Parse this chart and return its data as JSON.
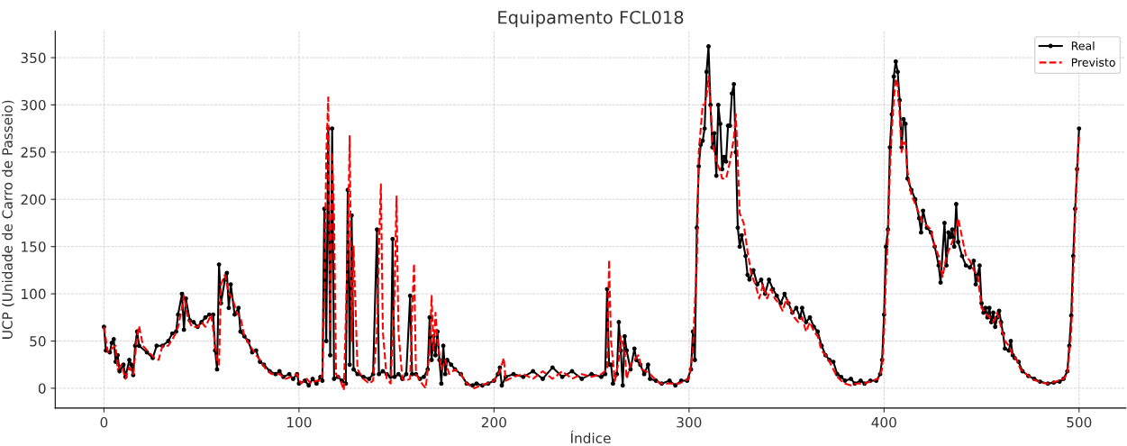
{
  "chart_data": {
    "type": "line",
    "title": "Equipamento FCL018",
    "xlabel": "Índice",
    "ylabel": "UCP (Unidade de Carro de Passeio)",
    "xlim": [
      -25,
      524
    ],
    "ylim": [
      -21,
      378
    ],
    "xticks": [
      0,
      100,
      200,
      300,
      400,
      500
    ],
    "yticks": [
      0,
      50,
      100,
      150,
      200,
      250,
      300,
      350
    ],
    "grid": true,
    "legend": "top right",
    "series": [
      {
        "name": "Real",
        "color": "#000000",
        "marker": "circle",
        "line_style": "solid",
        "x": [
          0,
          1,
          3,
          4,
          5,
          6,
          7,
          8,
          10,
          11,
          13,
          14,
          15,
          16,
          17,
          18,
          22,
          25,
          27,
          30,
          33,
          35,
          37,
          38,
          40,
          41,
          42,
          44,
          46,
          48,
          50,
          52,
          54,
          56,
          57,
          58,
          59,
          60,
          62,
          63,
          64,
          65,
          67,
          69,
          70,
          72,
          74,
          76,
          78,
          80,
          82,
          85,
          88,
          90,
          92,
          95,
          97,
          99,
          100,
          103,
          105,
          107,
          109,
          111,
          112,
          113,
          114,
          115,
          116,
          117,
          118,
          120,
          122,
          124,
          125,
          126,
          127,
          128,
          130,
          133,
          136,
          138,
          140,
          141,
          143,
          145,
          147,
          148,
          149,
          151,
          153,
          155,
          157,
          158,
          160,
          162,
          164,
          166,
          167,
          168,
          169,
          170,
          171,
          172,
          173,
          174,
          175,
          176,
          178,
          180,
          183,
          186,
          189,
          191,
          194,
          197,
          200,
          202,
          203,
          204,
          206,
          210,
          215,
          220,
          225,
          230,
          235,
          240,
          245,
          250,
          255,
          257,
          258,
          259,
          260,
          261,
          263,
          264,
          265,
          266,
          267,
          268,
          270,
          272,
          273,
          275,
          277,
          279,
          280,
          283,
          286,
          290,
          293,
          296,
          299,
          301,
          302,
          303,
          304,
          305,
          306,
          307,
          308,
          309,
          310,
          311,
          312,
          313,
          314,
          315,
          316,
          317,
          318,
          319,
          320,
          321,
          322,
          323,
          324,
          325,
          326,
          327,
          329,
          330,
          331,
          333,
          335,
          337,
          339,
          341,
          343,
          345,
          347,
          349,
          351,
          353,
          355,
          357,
          358,
          360,
          362,
          364,
          366,
          368,
          370,
          372,
          374,
          376,
          378,
          380,
          383,
          385,
          388,
          390,
          393,
          396,
          398,
          399,
          400,
          401,
          402,
          403,
          404,
          405,
          406,
          407,
          408,
          409,
          410,
          411,
          412,
          414,
          416,
          418,
          419,
          420,
          422,
          424,
          426,
          428,
          429,
          431,
          432,
          433,
          434,
          435,
          436,
          437,
          438,
          440,
          442,
          444,
          446,
          447,
          448,
          449,
          450,
          451,
          452,
          453,
          454,
          455,
          456,
          457,
          458,
          459,
          460,
          461,
          462,
          464,
          465,
          466,
          467,
          469,
          471,
          474,
          477,
          480,
          484,
          487,
          490,
          492,
          494,
          495,
          496,
          497,
          498,
          499,
          500
        ],
        "values": [
          65,
          40,
          38,
          48,
          52,
          28,
          35,
          18,
          25,
          12,
          30,
          25,
          14,
          45,
          60,
          45,
          38,
          32,
          45,
          45,
          50,
          58,
          60,
          78,
          100,
          62,
          95,
          72,
          70,
          65,
          70,
          75,
          78,
          78,
          40,
          20,
          131,
          90,
          115,
          122,
          85,
          110,
          78,
          85,
          60,
          55,
          50,
          38,
          40,
          28,
          25,
          18,
          15,
          18,
          12,
          15,
          10,
          15,
          5,
          8,
          3,
          10,
          5,
          12,
          8,
          190,
          50,
          275,
          35,
          275,
          10,
          12,
          8,
          5,
          210,
          25,
          183,
          20,
          15,
          12,
          10,
          15,
          168,
          15,
          18,
          15,
          12,
          158,
          12,
          15,
          10,
          15,
          98,
          15,
          15,
          10,
          12,
          20,
          75,
          30,
          55,
          35,
          60,
          30,
          5,
          45,
          15,
          30,
          25,
          20,
          15,
          5,
          3,
          5,
          3,
          5,
          8,
          15,
          22,
          3,
          12,
          15,
          12,
          18,
          10,
          22,
          12,
          18,
          10,
          15,
          12,
          15,
          105,
          25,
          25,
          5,
          15,
          70,
          40,
          3,
          55,
          40,
          20,
          42,
          30,
          25,
          15,
          25,
          10,
          8,
          5,
          8,
          3,
          8,
          8,
          20,
          60,
          30,
          170,
          235,
          258,
          262,
          275,
          335,
          362,
          300,
          255,
          270,
          225,
          300,
          280,
          232,
          245,
          240,
          278,
          278,
          312,
          322,
          250,
          170,
          150,
          162,
          140,
          120,
          115,
          125,
          110,
          115,
          100,
          115,
          105,
          98,
          90,
          100,
          90,
          80,
          85,
          75,
          85,
          70,
          75,
          65,
          60,
          45,
          35,
          30,
          28,
          15,
          12,
          8,
          10,
          5,
          8,
          5,
          8,
          8,
          15,
          30,
          78,
          150,
          168,
          255,
          290,
          330,
          346,
          335,
          305,
          255,
          285,
          280,
          222,
          210,
          200,
          180,
          165,
          188,
          170,
          165,
          150,
          130,
          112,
          175,
          130,
          165,
          160,
          168,
          150,
          195,
          155,
          140,
          130,
          128,
          135,
          110,
          120,
          130,
          90,
          80,
          85,
          75,
          85,
          70,
          80,
          65,
          75,
          82,
          70,
          58,
          42,
          40,
          50,
          35,
          32,
          28,
          18,
          13,
          10,
          7,
          5,
          6,
          7,
          10,
          18,
          45,
          77,
          140,
          190,
          232,
          275
        ]
      },
      {
        "name": "Previsto",
        "color": "#ff0000",
        "marker": "none",
        "line_style": "dashed",
        "x": [
          0,
          2,
          4,
          6,
          7,
          9,
          11,
          13,
          15,
          17,
          18,
          20,
          23,
          26,
          28,
          30,
          33,
          36,
          38,
          40,
          41,
          43,
          45,
          48,
          50,
          52,
          55,
          58,
          59,
          60,
          62,
          64,
          66,
          68,
          70,
          72,
          75,
          78,
          80,
          83,
          86,
          90,
          93,
          96,
          99,
          101,
          104,
          106,
          109,
          111,
          112,
          113,
          114,
          115,
          116,
          117,
          118,
          119,
          121,
          123,
          125,
          126,
          127,
          128,
          130,
          133,
          136,
          138,
          140,
          141,
          142,
          143,
          145,
          147,
          149,
          150,
          151,
          153,
          155,
          157,
          158,
          159,
          160,
          163,
          165,
          167,
          168,
          169,
          170,
          171,
          173,
          175,
          177,
          180,
          183,
          186,
          190,
          193,
          196,
          200,
          203,
          205,
          206,
          210,
          215,
          220,
          225,
          230,
          235,
          240,
          245,
          250,
          255,
          258,
          259,
          260,
          262,
          264,
          265,
          267,
          268,
          270,
          272,
          274,
          276,
          280,
          285,
          290,
          295,
          300,
          302,
          303,
          304,
          305,
          307,
          308,
          309,
          310,
          311,
          312,
          314,
          316,
          317,
          319,
          321,
          323,
          324,
          325,
          326,
          328,
          330,
          332,
          334,
          336,
          338,
          340,
          342,
          344,
          346,
          348,
          350,
          352,
          354,
          356,
          358,
          360,
          362,
          364,
          366,
          368,
          370,
          372,
          374,
          376,
          378,
          380,
          383,
          386,
          390,
          394,
          397,
          399,
          400,
          401,
          402,
          403,
          404,
          405,
          406,
          407,
          408,
          409,
          410,
          411,
          412,
          414,
          416,
          418,
          420,
          422,
          424,
          426,
          428,
          430,
          432,
          434,
          436,
          438,
          440,
          442,
          444,
          446,
          448,
          450,
          452,
          454,
          456,
          458,
          460,
          462,
          464,
          466,
          468,
          470,
          473,
          476,
          480,
          484,
          488,
          492,
          494,
          496,
          497,
          498,
          499,
          500
        ],
        "values": [
          65,
          38,
          42,
          45,
          20,
          25,
          10,
          22,
          15,
          55,
          66,
          45,
          38,
          32,
          30,
          45,
          45,
          55,
          65,
          85,
          98,
          75,
          65,
          65,
          70,
          65,
          78,
          30,
          25,
          110,
          120,
          100,
          95,
          80,
          75,
          55,
          45,
          35,
          30,
          20,
          15,
          15,
          10,
          12,
          15,
          5,
          10,
          5,
          8,
          8,
          15,
          100,
          247,
          308,
          60,
          250,
          180,
          15,
          10,
          -2,
          150,
          267,
          50,
          150,
          20,
          10,
          5,
          8,
          60,
          150,
          216,
          60,
          10,
          5,
          100,
          203,
          60,
          10,
          8,
          10,
          80,
          132,
          15,
          5,
          0,
          40,
          98,
          40,
          80,
          50,
          20,
          30,
          15,
          20,
          15,
          5,
          0,
          3,
          5,
          8,
          18,
          32,
          8,
          12,
          15,
          10,
          18,
          10,
          18,
          10,
          15,
          12,
          15,
          20,
          136,
          50,
          8,
          30,
          55,
          40,
          10,
          25,
          30,
          35,
          20,
          15,
          5,
          5,
          5,
          10,
          40,
          90,
          130,
          250,
          300,
          300,
          310,
          330,
          300,
          260,
          240,
          230,
          222,
          222,
          240,
          265,
          290,
          240,
          185,
          175,
          145,
          120,
          110,
          95,
          110,
          95,
          105,
          95,
          90,
          82,
          95,
          85,
          75,
          70,
          75,
          60,
          70,
          60,
          55,
          40,
          35,
          28,
          20,
          12,
          8,
          5,
          3,
          5,
          5,
          8,
          10,
          20,
          60,
          120,
          160,
          230,
          275,
          305,
          328,
          320,
          290,
          250,
          260,
          260,
          230,
          205,
          195,
          185,
          175,
          172,
          168,
          150,
          140,
          118,
          140,
          150,
          160,
          180,
          160,
          140,
          135,
          125,
          120,
          85,
          80,
          75,
          70,
          80,
          65,
          50,
          45,
          35,
          30,
          20,
          15,
          10,
          6,
          5,
          7,
          10,
          15,
          60,
          120,
          180,
          230,
          268
        ]
      }
    ]
  }
}
